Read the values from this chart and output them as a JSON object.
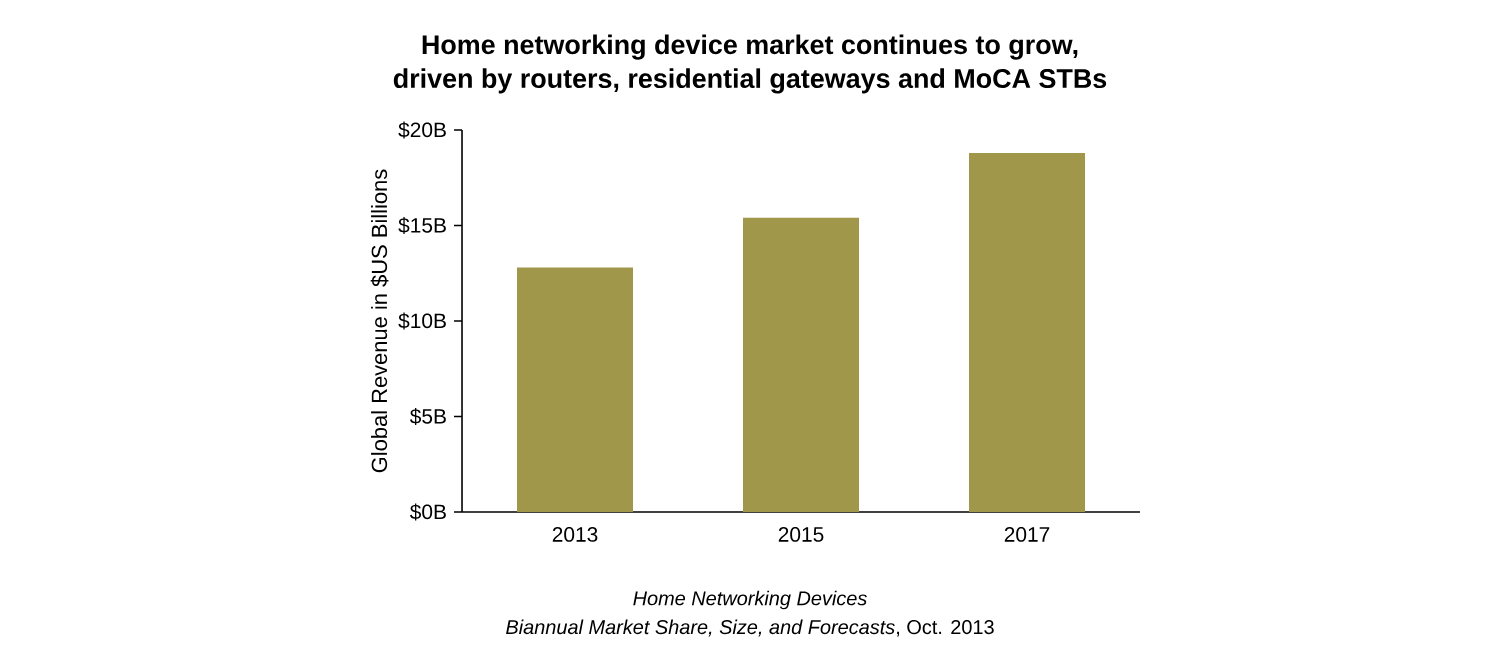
{
  "chart_data": {
    "type": "bar",
    "title": "Home networking device market continues to grow,\ndriven by routers, residential gateways and MoCA STBs",
    "ylabel": "Global Revenue in $US Billions",
    "categories": [
      "2013",
      "2015",
      "2017"
    ],
    "values": [
      12.8,
      15.4,
      18.8
    ],
    "color": "#a0974b",
    "ylim": [
      0,
      20
    ],
    "yticks": [
      {
        "value": 0,
        "label": "$0B"
      },
      {
        "value": 5,
        "label": "$5B"
      },
      {
        "value": 10,
        "label": "$10B"
      },
      {
        "value": 15,
        "label": "$15B"
      },
      {
        "value": 20,
        "label": "$20B"
      }
    ],
    "grid": false,
    "annotations": [
      "*Home Networking Devices*",
      "*Biannual Market Share, Size, and Forecasts*, Oct. 2013"
    ]
  }
}
